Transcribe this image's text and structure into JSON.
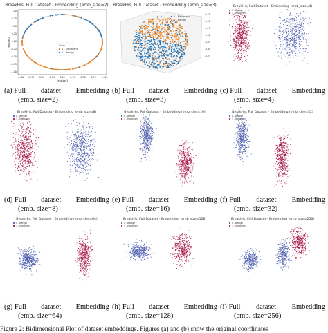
{
  "panels": [
    {
      "title": "BreakHis, Full Dataset - Embedding (emb_size=2)",
      "caption_label": "(a) Full",
      "caption_words": [
        "dataset",
        "Embedding"
      ],
      "caption_size": "(emb. size=2)",
      "legend": [
        "Class",
        "1 - Malignant",
        "0 - Benign"
      ]
    },
    {
      "title": "BreakHis, Full Dataset - Embedding (emb_size=3)",
      "caption_label": "(b) Full",
      "caption_words": [
        "dataset",
        "Embedding"
      ],
      "caption_size": "(emb. size=3)",
      "legend": [
        "1 - Malignant",
        "0 - Benign"
      ]
    },
    {
      "title": "BreakHis, Full Dataset - Embedding (emb_size=4)",
      "caption_label": "(c) Full",
      "caption_words": [
        "dataset",
        "Embedding"
      ],
      "caption_size": "(emb. size=4)",
      "legend": [
        "0 - Benign",
        "1 - Malignant"
      ]
    },
    {
      "title": "BreakHis, Full Dataset - Embedding (emb_size=8)",
      "caption_label": "(d) Full",
      "caption_words": [
        "dataset",
        "Embedding"
      ],
      "caption_size": "(emb. size=8)",
      "legend": [
        "0 - Benign",
        "1 - Malignant"
      ]
    },
    {
      "title": "BreakHis, Full Dataset - Embedding (emb_size=16)",
      "caption_label": "(e) Full",
      "caption_words": [
        "dataset",
        "Embedding"
      ],
      "caption_size": "(emb. size=16)",
      "legend": [
        "0 - Benign",
        "1 - Malignant"
      ]
    },
    {
      "title": "BreakHis, Full Dataset - Embedding (emb_size=32)",
      "caption_label": "(f) Full",
      "caption_words": [
        "dataset",
        "Embedding"
      ],
      "caption_size": "(emb. size=32)",
      "legend": [
        "0 - Benign",
        "1 - Malignant"
      ]
    },
    {
      "title": "BreakHis, Full Dataset - Embedding (emb_size=64)",
      "caption_label": "(g) Full",
      "caption_words": [
        "dataset",
        "Embedding"
      ],
      "caption_size": "(emb. size=64)",
      "legend": [
        "0 - Benign",
        "1 - Malignant"
      ]
    },
    {
      "title": "BreakHis, Full Dataset - Embedding (emb_size=128)",
      "caption_label": "(h) Full",
      "caption_words": [
        "dataset",
        "Embedding"
      ],
      "caption_size": "(emb. size=128)",
      "legend": [
        "0 - Benign",
        "1 - Malignant"
      ]
    },
    {
      "title": "BreakHis, Full Dataset - Embedding (emb_size=256)",
      "caption_label": "(i) Full",
      "caption_words": [
        "dataset",
        "Embedding"
      ],
      "caption_size": "(emb. size=256)",
      "legend": [
        "0 - Benign",
        "1 - Malignant"
      ]
    }
  ],
  "panel_a_axes": {
    "xlabel": "Feature 1",
    "ylabel": "Feature 2",
    "xticks": [
      "-1.00",
      "-0.75",
      "-0.50",
      "-0.25",
      "0.00",
      "0.25",
      "0.50",
      "0.75",
      "1.00"
    ],
    "yticks": [
      "1.00",
      "0.75",
      "0.50",
      "0.25",
      "0.00",
      "-0.25",
      "-0.50",
      "-0.75",
      "-1.00"
    ]
  },
  "panel_b_axes": {
    "zticks": [
      "0.75",
      "0.50",
      "0.25",
      "0.00",
      "-0.25",
      "-0.50",
      "-0.75"
    ]
  },
  "colors": {
    "malignant": "#a8174a",
    "benign": "#4f5fb0",
    "malignant_2d": "#e8862a",
    "benign_2d": "#2c7bb6",
    "ring_orange": "#ef8a2e",
    "ring_blue": "#2877b8"
  },
  "footer": "Figure 2: Bidimensional Plot of dataset embeddings. Figures (a) and (b) show the original coordinates"
}
